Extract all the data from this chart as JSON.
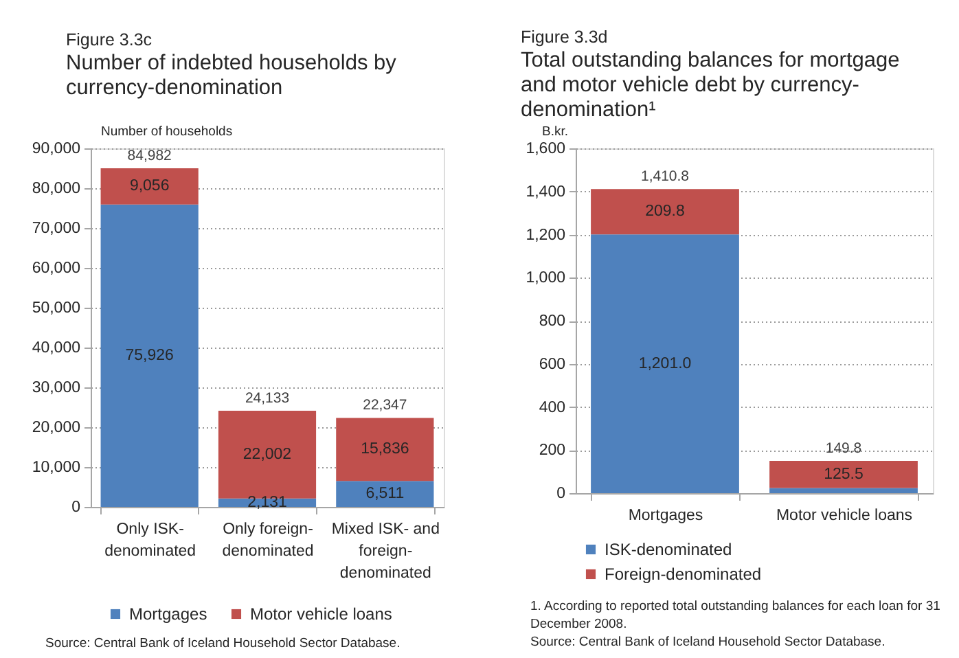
{
  "chart_data": [
    {
      "type": "bar",
      "title": "Figure 3.3c",
      "subtitle": "Number of indebted households by currency-denomination",
      "ylabel": "Number of households",
      "categories": [
        "Only ISK-denominated",
        "Only foreign-denominated",
        "Mixed ISK- and foreign-denominated"
      ],
      "stacked": true,
      "series": [
        {
          "name": "Mortgages",
          "color": "#4f81bd",
          "values": [
            75926,
            2131,
            6511
          ],
          "value_labels": [
            "75,926",
            "2,131",
            "6,511"
          ]
        },
        {
          "name": "Motor vehicle loans",
          "color": "#c0504d",
          "values": [
            9056,
            22002,
            15836
          ],
          "value_labels": [
            "9,056",
            "22,002",
            "15,836"
          ]
        }
      ],
      "totals": [
        "84,982",
        "24,133",
        "22,347"
      ],
      "ylim": [
        0,
        90000
      ],
      "yticks": [
        0,
        {
          "value": 10000,
          "label": "10,000"
        },
        {
          "value": 20000,
          "label": "20,000"
        },
        {
          "value": 30000,
          "label": "30,000"
        },
        {
          "value": 40000,
          "label": "40,000"
        },
        {
          "value": 50000,
          "label": "50,000"
        },
        {
          "value": 60000,
          "label": "60,000"
        },
        {
          "value": 70000,
          "label": "70,000"
        },
        {
          "value": 80000,
          "label": "80,000"
        },
        {
          "value": 90000,
          "label": "90,000"
        }
      ],
      "grid": "y",
      "legend": "bottom",
      "annotations": [
        "Source: Central Bank of Iceland Household Sector Database."
      ]
    },
    {
      "type": "bar",
      "title": "Figure 3.3d",
      "subtitle": "Total outstanding balances for mortgage and motor vehicle debt by currency-denomination¹",
      "ylabel": "B.kr.",
      "categories": [
        "Mortgages",
        "Motor vehicle loans"
      ],
      "stacked": true,
      "series": [
        {
          "name": "ISK-denominated",
          "color": "#4f81bd",
          "values": [
            1201.0,
            24.3
          ],
          "value_labels": [
            "1,201.0",
            null
          ]
        },
        {
          "name": "Foreign-denominated",
          "color": "#c0504d",
          "values": [
            209.8,
            125.5
          ],
          "value_labels": [
            "209.8",
            "125.5"
          ]
        }
      ],
      "totals": [
        "1,410.8",
        "149.8"
      ],
      "ylim": [
        0,
        1600
      ],
      "yticks": [
        0,
        200,
        400,
        600,
        800,
        {
          "value": 1000,
          "label": "1,000"
        },
        {
          "value": 1200,
          "label": "1,200"
        },
        {
          "value": 1400,
          "label": "1,400"
        },
        {
          "value": 1600,
          "label": "1,600"
        }
      ],
      "grid": "y",
      "legend": "bottom",
      "annotations": [
        "1. According to reported total outstanding balances for each loan for 31 December 2008.",
        "Source: Central Bank of Iceland Household Sector Database."
      ]
    }
  ]
}
